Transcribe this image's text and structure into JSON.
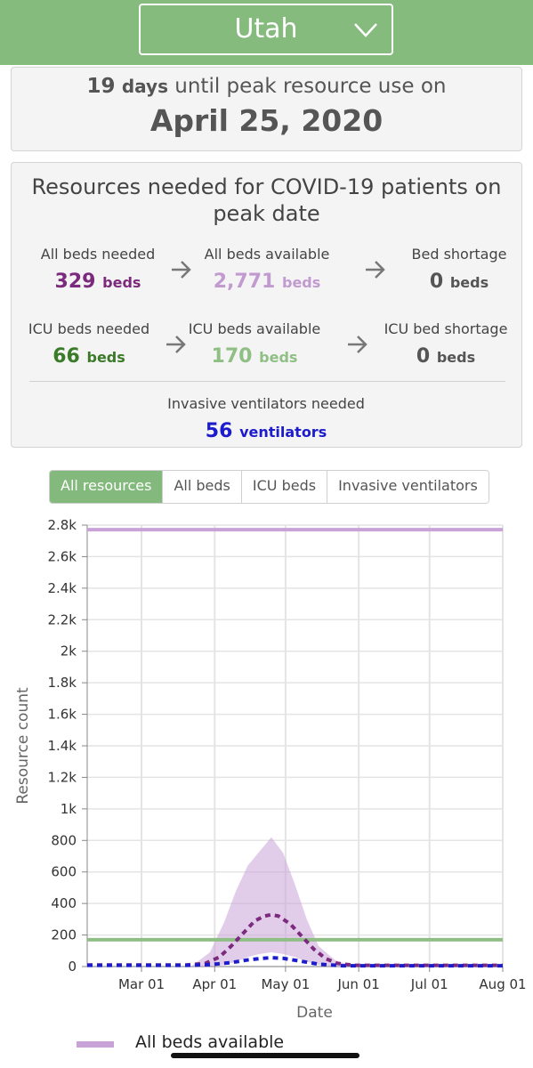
{
  "header": {
    "state": "Utah",
    "dropdown_icon": "chevron-down-icon"
  },
  "peak": {
    "days_number": "19",
    "days_unit": "days",
    "until_text": "until peak resource use on",
    "date": "April 25, 2020"
  },
  "resources": {
    "title": "Resources needed for COVID-19 patients on peak date",
    "rows": [
      {
        "needed": {
          "label": "All beds needed",
          "value": "329",
          "unit": "beds"
        },
        "available": {
          "label": "All beds available",
          "value": "2,771",
          "unit": "beds"
        },
        "shortage": {
          "label": "Bed shortage",
          "value": "0",
          "unit": "beds"
        }
      },
      {
        "needed": {
          "label": "ICU beds needed",
          "value": "66",
          "unit": "beds"
        },
        "available": {
          "label": "ICU beds available",
          "value": "170",
          "unit": "beds"
        },
        "shortage": {
          "label": "ICU bed shortage",
          "value": "0",
          "unit": "beds"
        }
      }
    ],
    "ventilators": {
      "label": "Invasive ventilators needed",
      "value": "56",
      "unit": "ventilators"
    },
    "arrow_icon": "arrow-right-icon"
  },
  "colors": {
    "header_green": "#85bb7d",
    "all_beds_purple": "#7b2a7d",
    "all_beds_available": "#c9a2d7",
    "icu_green": "#3b7a28",
    "icu_available": "#8fbf85",
    "ventilator_blue": "#1c1ccc"
  },
  "tabs": [
    "All resources",
    "All beds",
    "ICU beds",
    "Invasive ventilators"
  ],
  "active_tab": "All resources",
  "chart_data": {
    "type": "line",
    "xlabel": "Date",
    "ylabel": "Resource count",
    "x_ticks": [
      "Mar 01",
      "Apr 01",
      "May 01",
      "Jun 01",
      "Jul 01",
      "Aug 01"
    ],
    "y_ticks": [
      "0",
      "200",
      "400",
      "600",
      "800",
      "1k",
      "1.2k",
      "1.4k",
      "1.6k",
      "1.8k",
      "2k",
      "2.2k",
      "2.4k",
      "2.6k",
      "2.8k"
    ],
    "ylim": [
      0,
      2800
    ],
    "xlim": [
      "2020-02-07",
      "2020-08-01"
    ],
    "grid": true,
    "series": [
      {
        "name": "All beds available",
        "style": "solid",
        "color": "#c9a2d7",
        "x": [
          "2020-02-07",
          "2020-08-01"
        ],
        "y": [
          2771,
          2771
        ]
      },
      {
        "style": "solid",
        "color": "#8fbf85",
        "x": [
          "2020-02-07",
          "2020-08-01"
        ],
        "y": [
          170,
          170
        ]
      },
      {
        "style": "dashed",
        "color": "#7b2a7d",
        "x": [
          "2020-02-07",
          "2020-03-20",
          "2020-03-28",
          "2020-04-03",
          "2020-04-08",
          "2020-04-13",
          "2020-04-18",
          "2020-04-22",
          "2020-04-25",
          "2020-04-28",
          "2020-05-03",
          "2020-05-08",
          "2020-05-13",
          "2020-05-18",
          "2020-05-23",
          "2020-05-30",
          "2020-08-01"
        ],
        "y": [
          10,
          10,
          20,
          60,
          130,
          210,
          290,
          320,
          329,
          320,
          270,
          190,
          110,
          50,
          20,
          8,
          8
        ]
      },
      {
        "style": "dashed",
        "color": "#1c1ccc",
        "x": [
          "2020-02-07",
          "2020-03-20",
          "2020-03-30",
          "2020-04-08",
          "2020-04-15",
          "2020-04-21",
          "2020-04-25",
          "2020-04-30",
          "2020-05-07",
          "2020-05-15",
          "2020-05-25",
          "2020-08-01"
        ],
        "y": [
          8,
          8,
          12,
          25,
          42,
          52,
          56,
          52,
          35,
          15,
          5,
          5
        ]
      },
      {
        "style": "band",
        "color": "#c9a2d7",
        "x": [
          "2020-03-22",
          "2020-03-30",
          "2020-04-05",
          "2020-04-10",
          "2020-04-15",
          "2020-04-20",
          "2020-04-25",
          "2020-04-30",
          "2020-05-05",
          "2020-05-10",
          "2020-05-15",
          "2020-05-22",
          "2020-05-30"
        ],
        "upper": [
          0,
          90,
          280,
          480,
          640,
          730,
          820,
          720,
          520,
          300,
          130,
          40,
          0
        ],
        "lower": [
          0,
          0,
          10,
          30,
          60,
          80,
          90,
          80,
          60,
          30,
          10,
          0,
          0
        ]
      }
    ]
  },
  "legend": {
    "label": "All beds available"
  }
}
